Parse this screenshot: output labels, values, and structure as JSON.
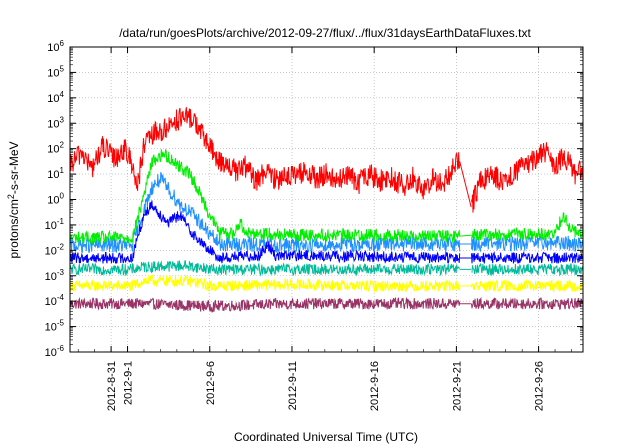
{
  "chart_data": {
    "type": "line",
    "title": "/data/run/goesPlots/archive/2012-09-27/flux/../flux/31daysEarthDataFluxes.txt",
    "xlabel": "Coordinated Universal Time (UTC)",
    "ylabel": {
      "prefix": "protons/cm",
      "sup": "2",
      "suffix": "-s-sr-MeV"
    },
    "x_range_days": [
      -3.5,
      27.7
    ],
    "x_axis_origin": "2012-09-01",
    "x_ticks": [
      {
        "day": -1,
        "label": "2012-8-31"
      },
      {
        "day": 0,
        "label": "2012-9-1"
      },
      {
        "day": 5,
        "label": "2012-9-6"
      },
      {
        "day": 10,
        "label": "2012-9-11"
      },
      {
        "day": 15,
        "label": "2012-9-16"
      },
      {
        "day": 20,
        "label": "2012-9-21"
      },
      {
        "day": 25,
        "label": "2012-9-26"
      }
    ],
    "y_scale": "log",
    "y_range_exp": [
      -6,
      6
    ],
    "y_ticks": [
      {
        "exp": -6,
        "label": "10",
        "sup": "-6"
      },
      {
        "exp": -5,
        "label": "10",
        "sup": "-5"
      },
      {
        "exp": -4,
        "label": "10",
        "sup": "-4"
      },
      {
        "exp": -3,
        "label": "10",
        "sup": "-3"
      },
      {
        "exp": -2,
        "label": "10",
        "sup": "-2"
      },
      {
        "exp": -1,
        "label": "10",
        "sup": "-1"
      },
      {
        "exp": 0,
        "label": "10",
        "sup": "0"
      },
      {
        "exp": 1,
        "label": "10",
        "sup": "1"
      },
      {
        "exp": 2,
        "label": "10",
        "sup": "2"
      },
      {
        "exp": 3,
        "label": "10",
        "sup": "3"
      },
      {
        "exp": 4,
        "label": "10",
        "sup": "4"
      },
      {
        "exp": 5,
        "label": "10",
        "sup": "5"
      },
      {
        "exp": 6,
        "label": "10",
        "sup": "6"
      }
    ],
    "grid": true,
    "data_gap_days": [
      20.2,
      20.9
    ],
    "series": [
      {
        "color": "#993366",
        "noise": 0.22,
        "points": [
          [
            -3.5,
            -4.1
          ],
          [
            1.0,
            -4.1
          ],
          [
            5.0,
            -4.2
          ],
          [
            10.0,
            -4.1
          ],
          [
            15.0,
            -4.1
          ],
          [
            20.0,
            -4.1
          ],
          [
            21.0,
            -4.1
          ],
          [
            27.7,
            -4.1
          ]
        ]
      },
      {
        "color": "#ffff00",
        "noise": 0.22,
        "points": [
          [
            -3.5,
            -3.4
          ],
          [
            0.3,
            -3.4
          ],
          [
            1.0,
            -3.2
          ],
          [
            3.5,
            -3.2
          ],
          [
            4.5,
            -3.3
          ],
          [
            5.0,
            -3.4
          ],
          [
            10.0,
            -3.35
          ],
          [
            15.0,
            -3.4
          ],
          [
            20.0,
            -3.4
          ],
          [
            21.0,
            -3.4
          ],
          [
            27.7,
            -3.4
          ]
        ]
      },
      {
        "color": "#00bb99",
        "noise": 0.22,
        "points": [
          [
            -3.5,
            -2.75
          ],
          [
            0.3,
            -2.75
          ],
          [
            1.0,
            -2.65
          ],
          [
            3.5,
            -2.6
          ],
          [
            4.7,
            -2.7
          ],
          [
            5.2,
            -2.75
          ],
          [
            10.0,
            -2.75
          ],
          [
            15.0,
            -2.75
          ],
          [
            20.0,
            -2.75
          ],
          [
            21.0,
            -2.75
          ],
          [
            27.7,
            -2.75
          ]
        ]
      },
      {
        "color": "#1e90ff",
        "noise": 0.3,
        "points": [
          [
            -3.5,
            -1.8
          ],
          [
            0.3,
            -1.8
          ],
          [
            0.8,
            -0.8
          ],
          [
            1.5,
            0.5
          ],
          [
            2.0,
            0.8
          ],
          [
            2.6,
            0.3
          ],
          [
            3.2,
            -0.2
          ],
          [
            3.8,
            -0.5
          ],
          [
            4.3,
            -0.8
          ],
          [
            4.9,
            -1.3
          ],
          [
            5.6,
            -1.75
          ],
          [
            10.0,
            -1.8
          ],
          [
            15.0,
            -1.75
          ],
          [
            20.0,
            -1.75
          ],
          [
            21.0,
            -1.75
          ],
          [
            26.0,
            -1.7
          ],
          [
            27.7,
            -1.75
          ]
        ]
      },
      {
        "color": "#00ee00",
        "noise": 0.25,
        "points": [
          [
            -3.5,
            -1.5
          ],
          [
            0.3,
            -1.5
          ],
          [
            0.8,
            -0.3
          ],
          [
            1.5,
            1.5
          ],
          [
            2.2,
            1.8
          ],
          [
            3.0,
            1.4
          ],
          [
            3.8,
            1.0
          ],
          [
            4.5,
            0.1
          ],
          [
            5.0,
            -0.6
          ],
          [
            5.6,
            -1.3
          ],
          [
            6.5,
            -1.35
          ],
          [
            6.8,
            -0.9
          ],
          [
            7.3,
            -1.3
          ],
          [
            10.0,
            -1.4
          ],
          [
            15.0,
            -1.4
          ],
          [
            20.0,
            -1.45
          ],
          [
            21.0,
            -1.4
          ],
          [
            26.0,
            -1.35
          ],
          [
            26.5,
            -0.6
          ],
          [
            27.0,
            -1.2
          ],
          [
            27.7,
            -1.35
          ]
        ]
      },
      {
        "color": "#0000ff",
        "noise": 0.22,
        "points": [
          [
            -3.5,
            -2.3
          ],
          [
            0.3,
            -2.3
          ],
          [
            0.6,
            -1.5
          ],
          [
            1.0,
            -0.6
          ],
          [
            1.5,
            -0.2
          ],
          [
            2.0,
            -0.6
          ],
          [
            2.5,
            -0.9
          ],
          [
            3.2,
            -0.6
          ],
          [
            3.8,
            -1.2
          ],
          [
            4.3,
            -1.6
          ],
          [
            5.0,
            -2.0
          ],
          [
            5.6,
            -2.3
          ],
          [
            8.0,
            -2.2
          ],
          [
            8.5,
            -1.8
          ],
          [
            9.0,
            -2.2
          ],
          [
            15.0,
            -2.25
          ],
          [
            20.0,
            -2.3
          ],
          [
            21.0,
            -2.3
          ],
          [
            27.7,
            -2.3
          ]
        ]
      },
      {
        "color": "#ff0000",
        "noise": 0.45,
        "points": [
          [
            -3.5,
            1.3
          ],
          [
            -2.8,
            1.9
          ],
          [
            -2.2,
            1.2
          ],
          [
            -1.5,
            2.1
          ],
          [
            -0.8,
            1.6
          ],
          [
            -0.2,
            2.0
          ],
          [
            0.3,
            1.4
          ],
          [
            0.6,
            0.5
          ],
          [
            1.0,
            2.1
          ],
          [
            1.6,
            2.6
          ],
          [
            2.2,
            2.7
          ],
          [
            2.8,
            3.1
          ],
          [
            3.4,
            3.2
          ],
          [
            4.0,
            3.2
          ],
          [
            4.4,
            2.7
          ],
          [
            4.9,
            2.2
          ],
          [
            5.4,
            1.6
          ],
          [
            6.0,
            1.4
          ],
          [
            6.6,
            1.1
          ],
          [
            7.2,
            1.3
          ],
          [
            7.8,
            0.7
          ],
          [
            8.3,
            1.1
          ],
          [
            9.0,
            0.8
          ],
          [
            9.6,
            1.0
          ],
          [
            10.2,
            0.9
          ],
          [
            10.8,
            1.1
          ],
          [
            11.5,
            0.8
          ],
          [
            12.1,
            1.0
          ],
          [
            12.8,
            0.7
          ],
          [
            13.4,
            1.0
          ],
          [
            14.0,
            0.6
          ],
          [
            14.7,
            1.0
          ],
          [
            15.3,
            0.7
          ],
          [
            16.0,
            0.9
          ],
          [
            16.8,
            0.5
          ],
          [
            17.4,
            0.9
          ],
          [
            18.0,
            0.3
          ],
          [
            18.6,
            0.8
          ],
          [
            19.2,
            0.6
          ],
          [
            19.8,
            1.2
          ],
          [
            20.2,
            1.5
          ],
          [
            20.9,
            -0.3
          ],
          [
            21.5,
            0.8
          ],
          [
            22.2,
            1.0
          ],
          [
            22.8,
            0.7
          ],
          [
            23.5,
            1.1
          ],
          [
            24.2,
            1.3
          ],
          [
            24.8,
            1.6
          ],
          [
            25.4,
            1.9
          ],
          [
            26.0,
            1.3
          ],
          [
            26.6,
            1.7
          ],
          [
            27.2,
            1.0
          ],
          [
            27.7,
            1.1
          ]
        ]
      }
    ]
  }
}
